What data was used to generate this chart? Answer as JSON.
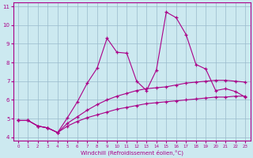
{
  "xlabel": "Windchill (Refroidissement éolien,°C)",
  "xlim": [
    -0.5,
    23.5
  ],
  "ylim": [
    3.8,
    11.2
  ],
  "yticks": [
    4,
    5,
    6,
    7,
    8,
    9,
    10,
    11
  ],
  "xticks": [
    0,
    1,
    2,
    3,
    4,
    5,
    6,
    7,
    8,
    9,
    10,
    11,
    12,
    13,
    14,
    15,
    16,
    17,
    18,
    19,
    20,
    21,
    22,
    23
  ],
  "bg_color": "#cce9f0",
  "line_color": "#aa0088",
  "grid_color": "#99bbcc",
  "series": [
    {
      "x": [
        0,
        1,
        2,
        3,
        4,
        5,
        6,
        7,
        8,
        9,
        10,
        11,
        12,
        13,
        14,
        15,
        16,
        17,
        18,
        19,
        20,
        21,
        22,
        23
      ],
      "y": [
        4.9,
        4.9,
        4.6,
        4.5,
        4.25,
        4.6,
        4.85,
        5.05,
        5.2,
        5.35,
        5.5,
        5.6,
        5.7,
        5.8,
        5.85,
        5.9,
        5.95,
        6.0,
        6.05,
        6.1,
        6.15,
        6.15,
        6.2,
        6.2
      ]
    },
    {
      "x": [
        0,
        1,
        2,
        3,
        4,
        5,
        6,
        7,
        8,
        9,
        10,
        11,
        12,
        13,
        14,
        15,
        16,
        17,
        18,
        19,
        20,
        21,
        22,
        23
      ],
      "y": [
        4.9,
        4.9,
        4.6,
        4.5,
        4.25,
        4.75,
        5.1,
        5.45,
        5.75,
        6.0,
        6.2,
        6.35,
        6.5,
        6.6,
        6.65,
        6.7,
        6.8,
        6.9,
        6.95,
        7.0,
        7.05,
        7.05,
        7.0,
        6.95
      ]
    },
    {
      "x": [
        0,
        1,
        2,
        3,
        4,
        5,
        6,
        7,
        8,
        9,
        10,
        11,
        12,
        13,
        14,
        15,
        16,
        17,
        18,
        19,
        20,
        21,
        22,
        23
      ],
      "y": [
        4.9,
        4.9,
        4.6,
        4.5,
        4.25,
        5.05,
        5.9,
        6.9,
        7.7,
        9.3,
        8.55,
        8.5,
        7.0,
        6.5,
        7.6,
        10.7,
        10.4,
        9.5,
        7.9,
        7.65,
        6.5,
        6.6,
        6.45,
        6.15
      ]
    }
  ]
}
